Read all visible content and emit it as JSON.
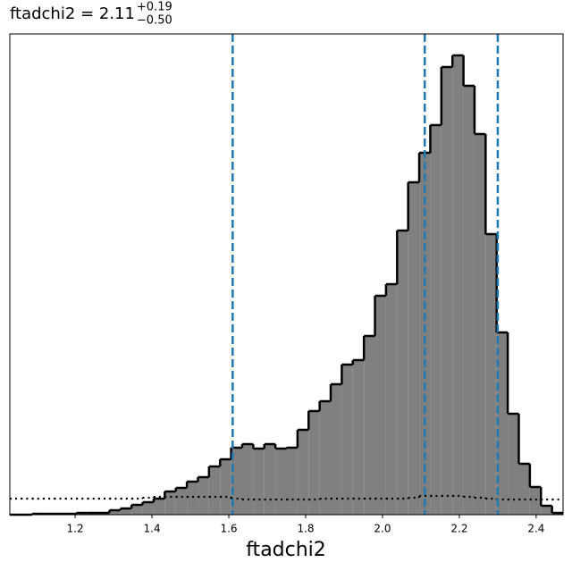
{
  "chart_data": {
    "type": "histogram",
    "title": "ftadchi2 = 2.11",
    "title_upper": "+0.19",
    "title_lower": "−0.50",
    "x_label": "ftadchi2",
    "bins": [
      1.03,
      1.0588,
      1.0876,
      1.1164,
      1.1452,
      1.174,
      1.2028,
      1.2316,
      1.2604,
      1.2892,
      1.318,
      1.3468,
      1.3756,
      1.4044,
      1.4332,
      1.462,
      1.4908,
      1.5196,
      1.5484,
      1.5772,
      1.606,
      1.6348,
      1.6636,
      1.6924,
      1.7212,
      1.75,
      1.7788,
      1.8076,
      1.8364,
      1.8652,
      1.894,
      1.9228,
      1.9516,
      1.9804,
      2.0092,
      2.038,
      2.0668,
      2.0956,
      2.1244,
      2.1532,
      2.182,
      2.2108,
      2.2396,
      2.2684,
      2.2972,
      2.326,
      2.3548,
      2.3836,
      2.4124,
      2.4412,
      2.47
    ],
    "values": [
      0,
      0,
      1,
      1,
      1,
      1,
      2,
      2,
      2,
      5,
      7,
      11,
      14,
      18,
      26,
      30,
      37,
      42,
      54,
      62,
      75,
      79,
      74,
      79,
      74,
      75,
      95,
      116,
      127,
      146,
      168,
      173,
      200,
      245,
      258,
      318,
      372,
      405,
      436,
      501,
      514,
      480,
      426,
      314,
      204,
      113,
      57,
      31,
      10,
      2
    ],
    "color": "#808080",
    "edge_color": "#000000",
    "overlay_values": [
      18,
      18,
      18,
      18,
      18,
      18,
      18,
      18,
      18,
      18,
      18,
      18,
      19,
      20,
      20,
      20,
      20,
      20,
      20,
      20,
      18,
      17,
      17,
      17,
      17,
      17,
      17,
      17,
      18,
      18,
      18,
      18,
      18,
      18,
      18,
      18,
      19,
      21,
      21,
      21,
      21,
      20,
      19,
      18,
      17,
      17,
      17,
      17,
      17,
      17
    ],
    "overlay_style": "dotted",
    "quantiles": [
      1.61,
      2.11,
      2.3
    ],
    "quantile_color": "#1f77b4",
    "xlim": [
      1.03,
      2.47
    ],
    "ylim": [
      0,
      538
    ],
    "xticks": [
      1.2,
      1.4,
      1.6,
      1.8,
      {
        "value": 2,
        "label": "2.0"
      },
      2.2,
      2.4
    ]
  }
}
